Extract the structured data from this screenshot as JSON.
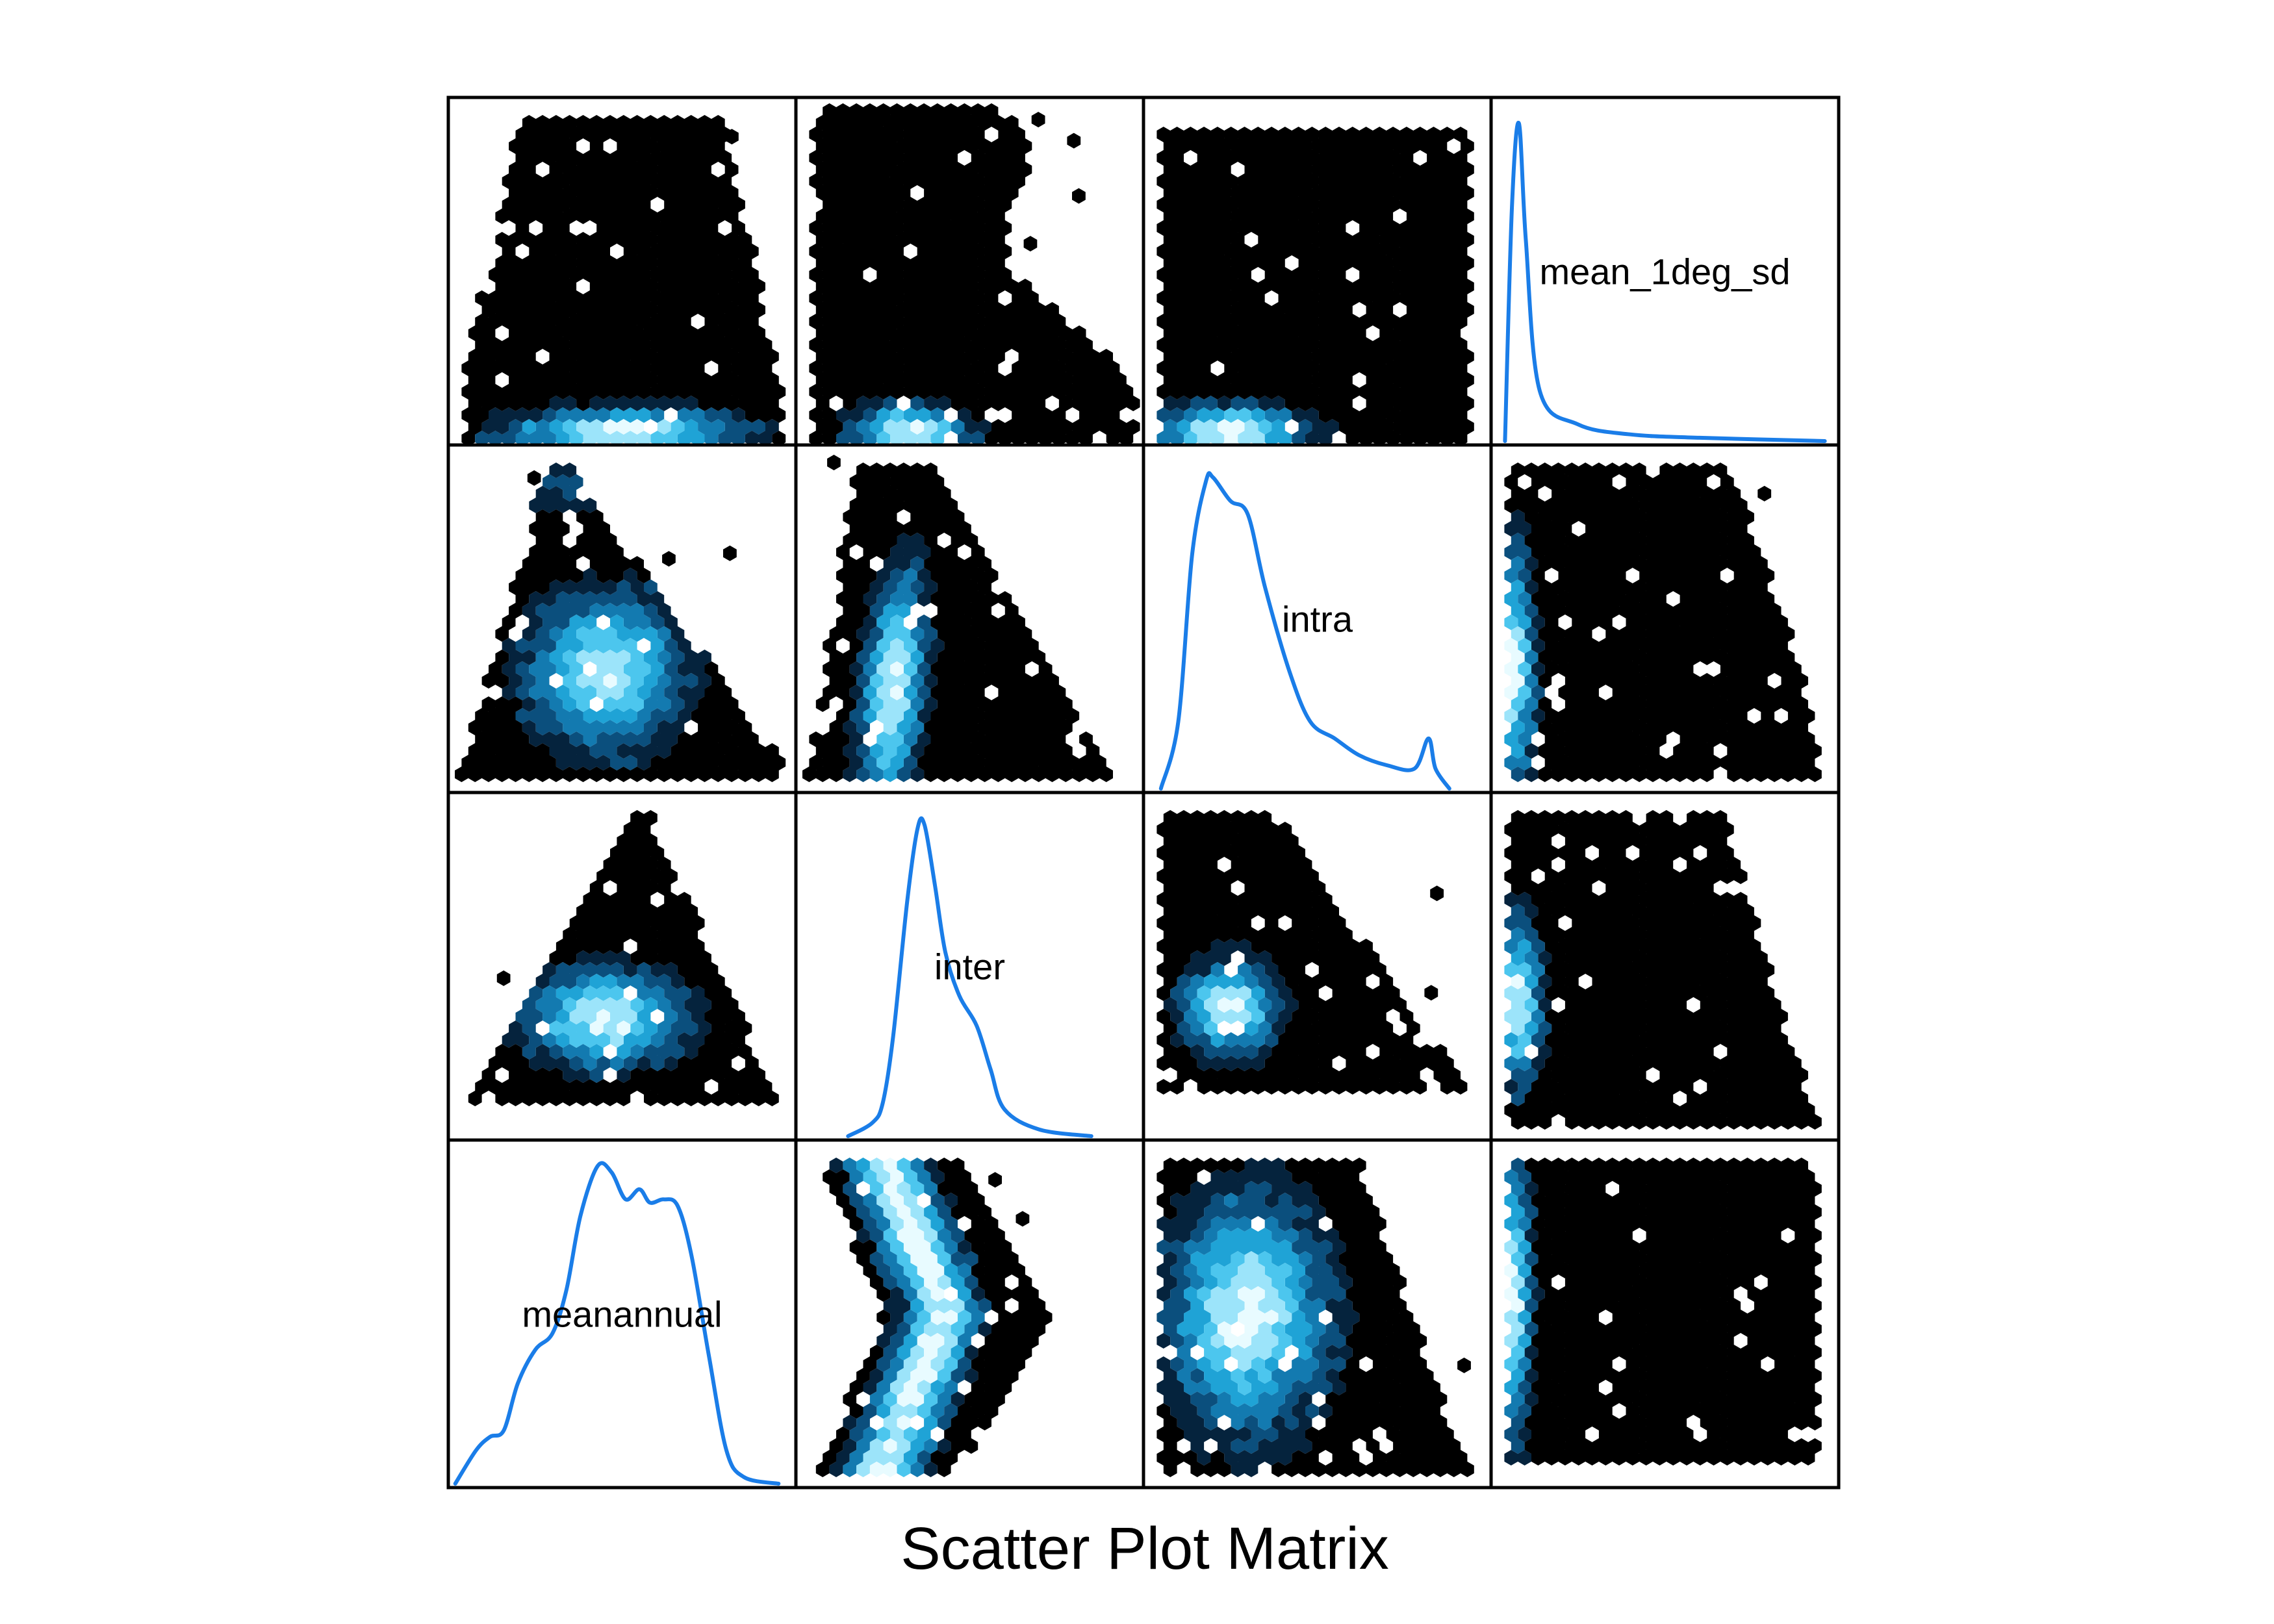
{
  "chart_data": {
    "type": "scatter-matrix",
    "subtype": "hexbin density with diagonal kernel density curves",
    "xlabel": "Scatter Plot Matrix",
    "variables": [
      "meanannual",
      "inter",
      "intra",
      "mean_1deg_sd"
    ],
    "diagonal_labels": {
      "meanannual": "meanannual",
      "inter": "inter",
      "intra": "intra",
      "mean_1deg_sd": "mean_1deg_sd"
    },
    "colors": {
      "background_bins": "#000000",
      "density_line": "#1a7de8",
      "hex_ramp": [
        "#000000",
        "#05233d",
        "#0b4f7d",
        "#137ab0",
        "#1fa3d6",
        "#4cc6ee",
        "#9ce4fa",
        "#e8fbff"
      ]
    },
    "grid": false,
    "legend": "none"
  }
}
